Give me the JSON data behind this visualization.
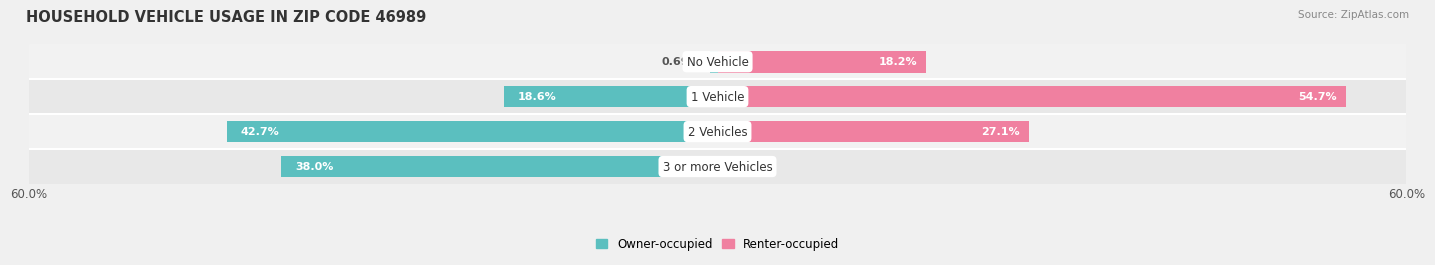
{
  "title": "HOUSEHOLD VEHICLE USAGE IN ZIP CODE 46989",
  "source": "Source: ZipAtlas.com",
  "categories": [
    "No Vehicle",
    "1 Vehicle",
    "2 Vehicles",
    "3 or more Vehicles"
  ],
  "owner_values": [
    0.69,
    18.6,
    42.7,
    38.0
  ],
  "renter_values": [
    18.2,
    54.7,
    27.1,
    0.0
  ],
  "owner_color": "#5BBFBF",
  "renter_color": "#F080A0",
  "axis_max": 60.0,
  "bar_height": 0.62,
  "row_colors": [
    "#f2f2f2",
    "#e8e8e8",
    "#f2f2f2",
    "#e8e8e8"
  ],
  "title_fontsize": 10.5,
  "label_fontsize": 8.0,
  "tick_fontsize": 8.5,
  "source_fontsize": 7.5,
  "legend_fontsize": 8.5
}
